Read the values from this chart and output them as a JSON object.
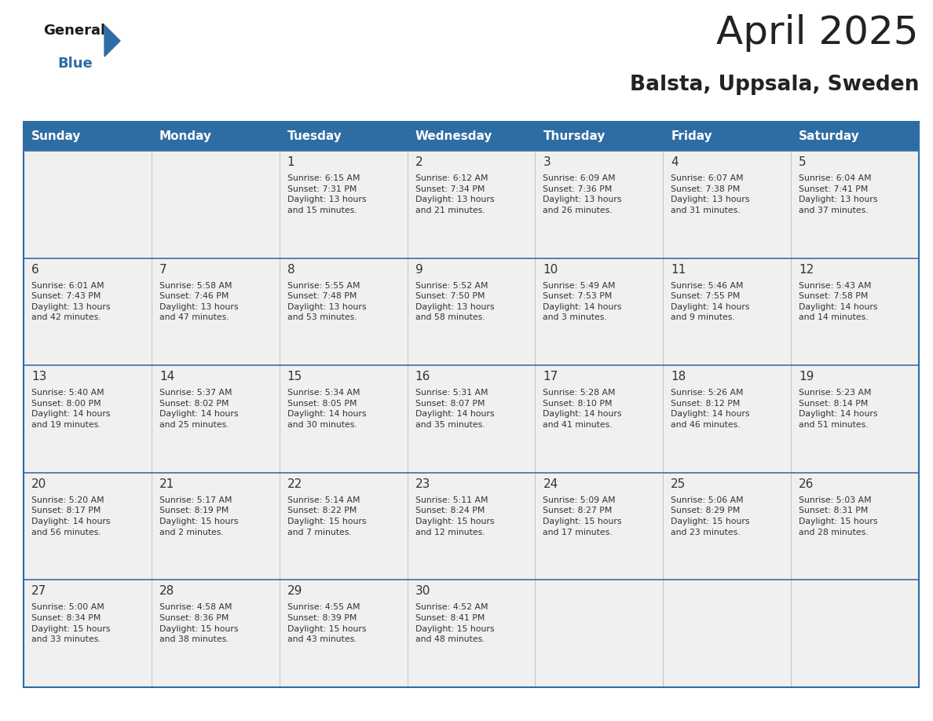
{
  "title": "April 2025",
  "subtitle": "Balsta, Uppsala, Sweden",
  "header_bg_color": "#2E6DA4",
  "header_text_color": "#FFFFFF",
  "cell_bg_color": "#F0F0F0",
  "grid_color": "#2E6DA4",
  "row_border_color": "#3A6EA8",
  "text_color": "#333333",
  "day_headers": [
    "Sunday",
    "Monday",
    "Tuesday",
    "Wednesday",
    "Thursday",
    "Friday",
    "Saturday"
  ],
  "weeks": [
    [
      {
        "day": "",
        "text": ""
      },
      {
        "day": "",
        "text": ""
      },
      {
        "day": "1",
        "text": "Sunrise: 6:15 AM\nSunset: 7:31 PM\nDaylight: 13 hours\nand 15 minutes."
      },
      {
        "day": "2",
        "text": "Sunrise: 6:12 AM\nSunset: 7:34 PM\nDaylight: 13 hours\nand 21 minutes."
      },
      {
        "day": "3",
        "text": "Sunrise: 6:09 AM\nSunset: 7:36 PM\nDaylight: 13 hours\nand 26 minutes."
      },
      {
        "day": "4",
        "text": "Sunrise: 6:07 AM\nSunset: 7:38 PM\nDaylight: 13 hours\nand 31 minutes."
      },
      {
        "day": "5",
        "text": "Sunrise: 6:04 AM\nSunset: 7:41 PM\nDaylight: 13 hours\nand 37 minutes."
      }
    ],
    [
      {
        "day": "6",
        "text": "Sunrise: 6:01 AM\nSunset: 7:43 PM\nDaylight: 13 hours\nand 42 minutes."
      },
      {
        "day": "7",
        "text": "Sunrise: 5:58 AM\nSunset: 7:46 PM\nDaylight: 13 hours\nand 47 minutes."
      },
      {
        "day": "8",
        "text": "Sunrise: 5:55 AM\nSunset: 7:48 PM\nDaylight: 13 hours\nand 53 minutes."
      },
      {
        "day": "9",
        "text": "Sunrise: 5:52 AM\nSunset: 7:50 PM\nDaylight: 13 hours\nand 58 minutes."
      },
      {
        "day": "10",
        "text": "Sunrise: 5:49 AM\nSunset: 7:53 PM\nDaylight: 14 hours\nand 3 minutes."
      },
      {
        "day": "11",
        "text": "Sunrise: 5:46 AM\nSunset: 7:55 PM\nDaylight: 14 hours\nand 9 minutes."
      },
      {
        "day": "12",
        "text": "Sunrise: 5:43 AM\nSunset: 7:58 PM\nDaylight: 14 hours\nand 14 minutes."
      }
    ],
    [
      {
        "day": "13",
        "text": "Sunrise: 5:40 AM\nSunset: 8:00 PM\nDaylight: 14 hours\nand 19 minutes."
      },
      {
        "day": "14",
        "text": "Sunrise: 5:37 AM\nSunset: 8:02 PM\nDaylight: 14 hours\nand 25 minutes."
      },
      {
        "day": "15",
        "text": "Sunrise: 5:34 AM\nSunset: 8:05 PM\nDaylight: 14 hours\nand 30 minutes."
      },
      {
        "day": "16",
        "text": "Sunrise: 5:31 AM\nSunset: 8:07 PM\nDaylight: 14 hours\nand 35 minutes."
      },
      {
        "day": "17",
        "text": "Sunrise: 5:28 AM\nSunset: 8:10 PM\nDaylight: 14 hours\nand 41 minutes."
      },
      {
        "day": "18",
        "text": "Sunrise: 5:26 AM\nSunset: 8:12 PM\nDaylight: 14 hours\nand 46 minutes."
      },
      {
        "day": "19",
        "text": "Sunrise: 5:23 AM\nSunset: 8:14 PM\nDaylight: 14 hours\nand 51 minutes."
      }
    ],
    [
      {
        "day": "20",
        "text": "Sunrise: 5:20 AM\nSunset: 8:17 PM\nDaylight: 14 hours\nand 56 minutes."
      },
      {
        "day": "21",
        "text": "Sunrise: 5:17 AM\nSunset: 8:19 PM\nDaylight: 15 hours\nand 2 minutes."
      },
      {
        "day": "22",
        "text": "Sunrise: 5:14 AM\nSunset: 8:22 PM\nDaylight: 15 hours\nand 7 minutes."
      },
      {
        "day": "23",
        "text": "Sunrise: 5:11 AM\nSunset: 8:24 PM\nDaylight: 15 hours\nand 12 minutes."
      },
      {
        "day": "24",
        "text": "Sunrise: 5:09 AM\nSunset: 8:27 PM\nDaylight: 15 hours\nand 17 minutes."
      },
      {
        "day": "25",
        "text": "Sunrise: 5:06 AM\nSunset: 8:29 PM\nDaylight: 15 hours\nand 23 minutes."
      },
      {
        "day": "26",
        "text": "Sunrise: 5:03 AM\nSunset: 8:31 PM\nDaylight: 15 hours\nand 28 minutes."
      }
    ],
    [
      {
        "day": "27",
        "text": "Sunrise: 5:00 AM\nSunset: 8:34 PM\nDaylight: 15 hours\nand 33 minutes."
      },
      {
        "day": "28",
        "text": "Sunrise: 4:58 AM\nSunset: 8:36 PM\nDaylight: 15 hours\nand 38 minutes."
      },
      {
        "day": "29",
        "text": "Sunrise: 4:55 AM\nSunset: 8:39 PM\nDaylight: 15 hours\nand 43 minutes."
      },
      {
        "day": "30",
        "text": "Sunrise: 4:52 AM\nSunset: 8:41 PM\nDaylight: 15 hours\nand 48 minutes."
      },
      {
        "day": "",
        "text": ""
      },
      {
        "day": "",
        "text": ""
      },
      {
        "day": "",
        "text": ""
      }
    ]
  ],
  "logo_text_general": "General",
  "logo_text_blue": "Blue",
  "logo_color_general": "#1a1a1a",
  "logo_color_blue": "#2E6DA4",
  "logo_triangle_color": "#2E6DA4",
  "fig_width": 11.88,
  "fig_height": 9.18,
  "dpi": 100
}
